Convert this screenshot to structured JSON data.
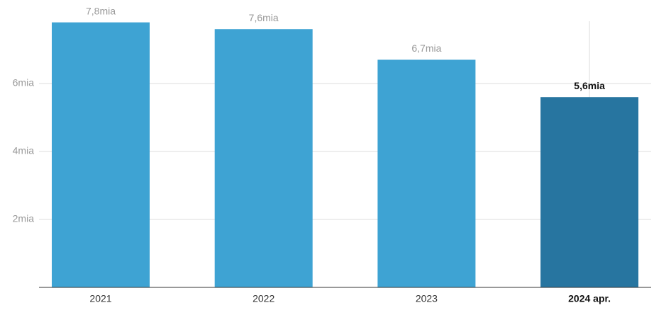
{
  "chart_data": {
    "type": "bar",
    "categories": [
      "2021",
      "2022",
      "2023",
      "2024 apr."
    ],
    "values": [
      7.8,
      7.6,
      6.7,
      5.6
    ],
    "value_labels": [
      "7,8mia",
      "7,6mia",
      "6,7mia",
      "5,6mia"
    ],
    "colors": [
      "#3ea3d3",
      "#3ea3d3",
      "#3ea3d3",
      "#2775a0"
    ],
    "highlight": 3,
    "ylim": [
      0,
      8
    ],
    "yticks": [
      {
        "value": 2,
        "label": "2mia"
      },
      {
        "value": 4,
        "label": "4mia"
      },
      {
        "value": 6,
        "label": "6mia"
      }
    ],
    "grid": true
  }
}
